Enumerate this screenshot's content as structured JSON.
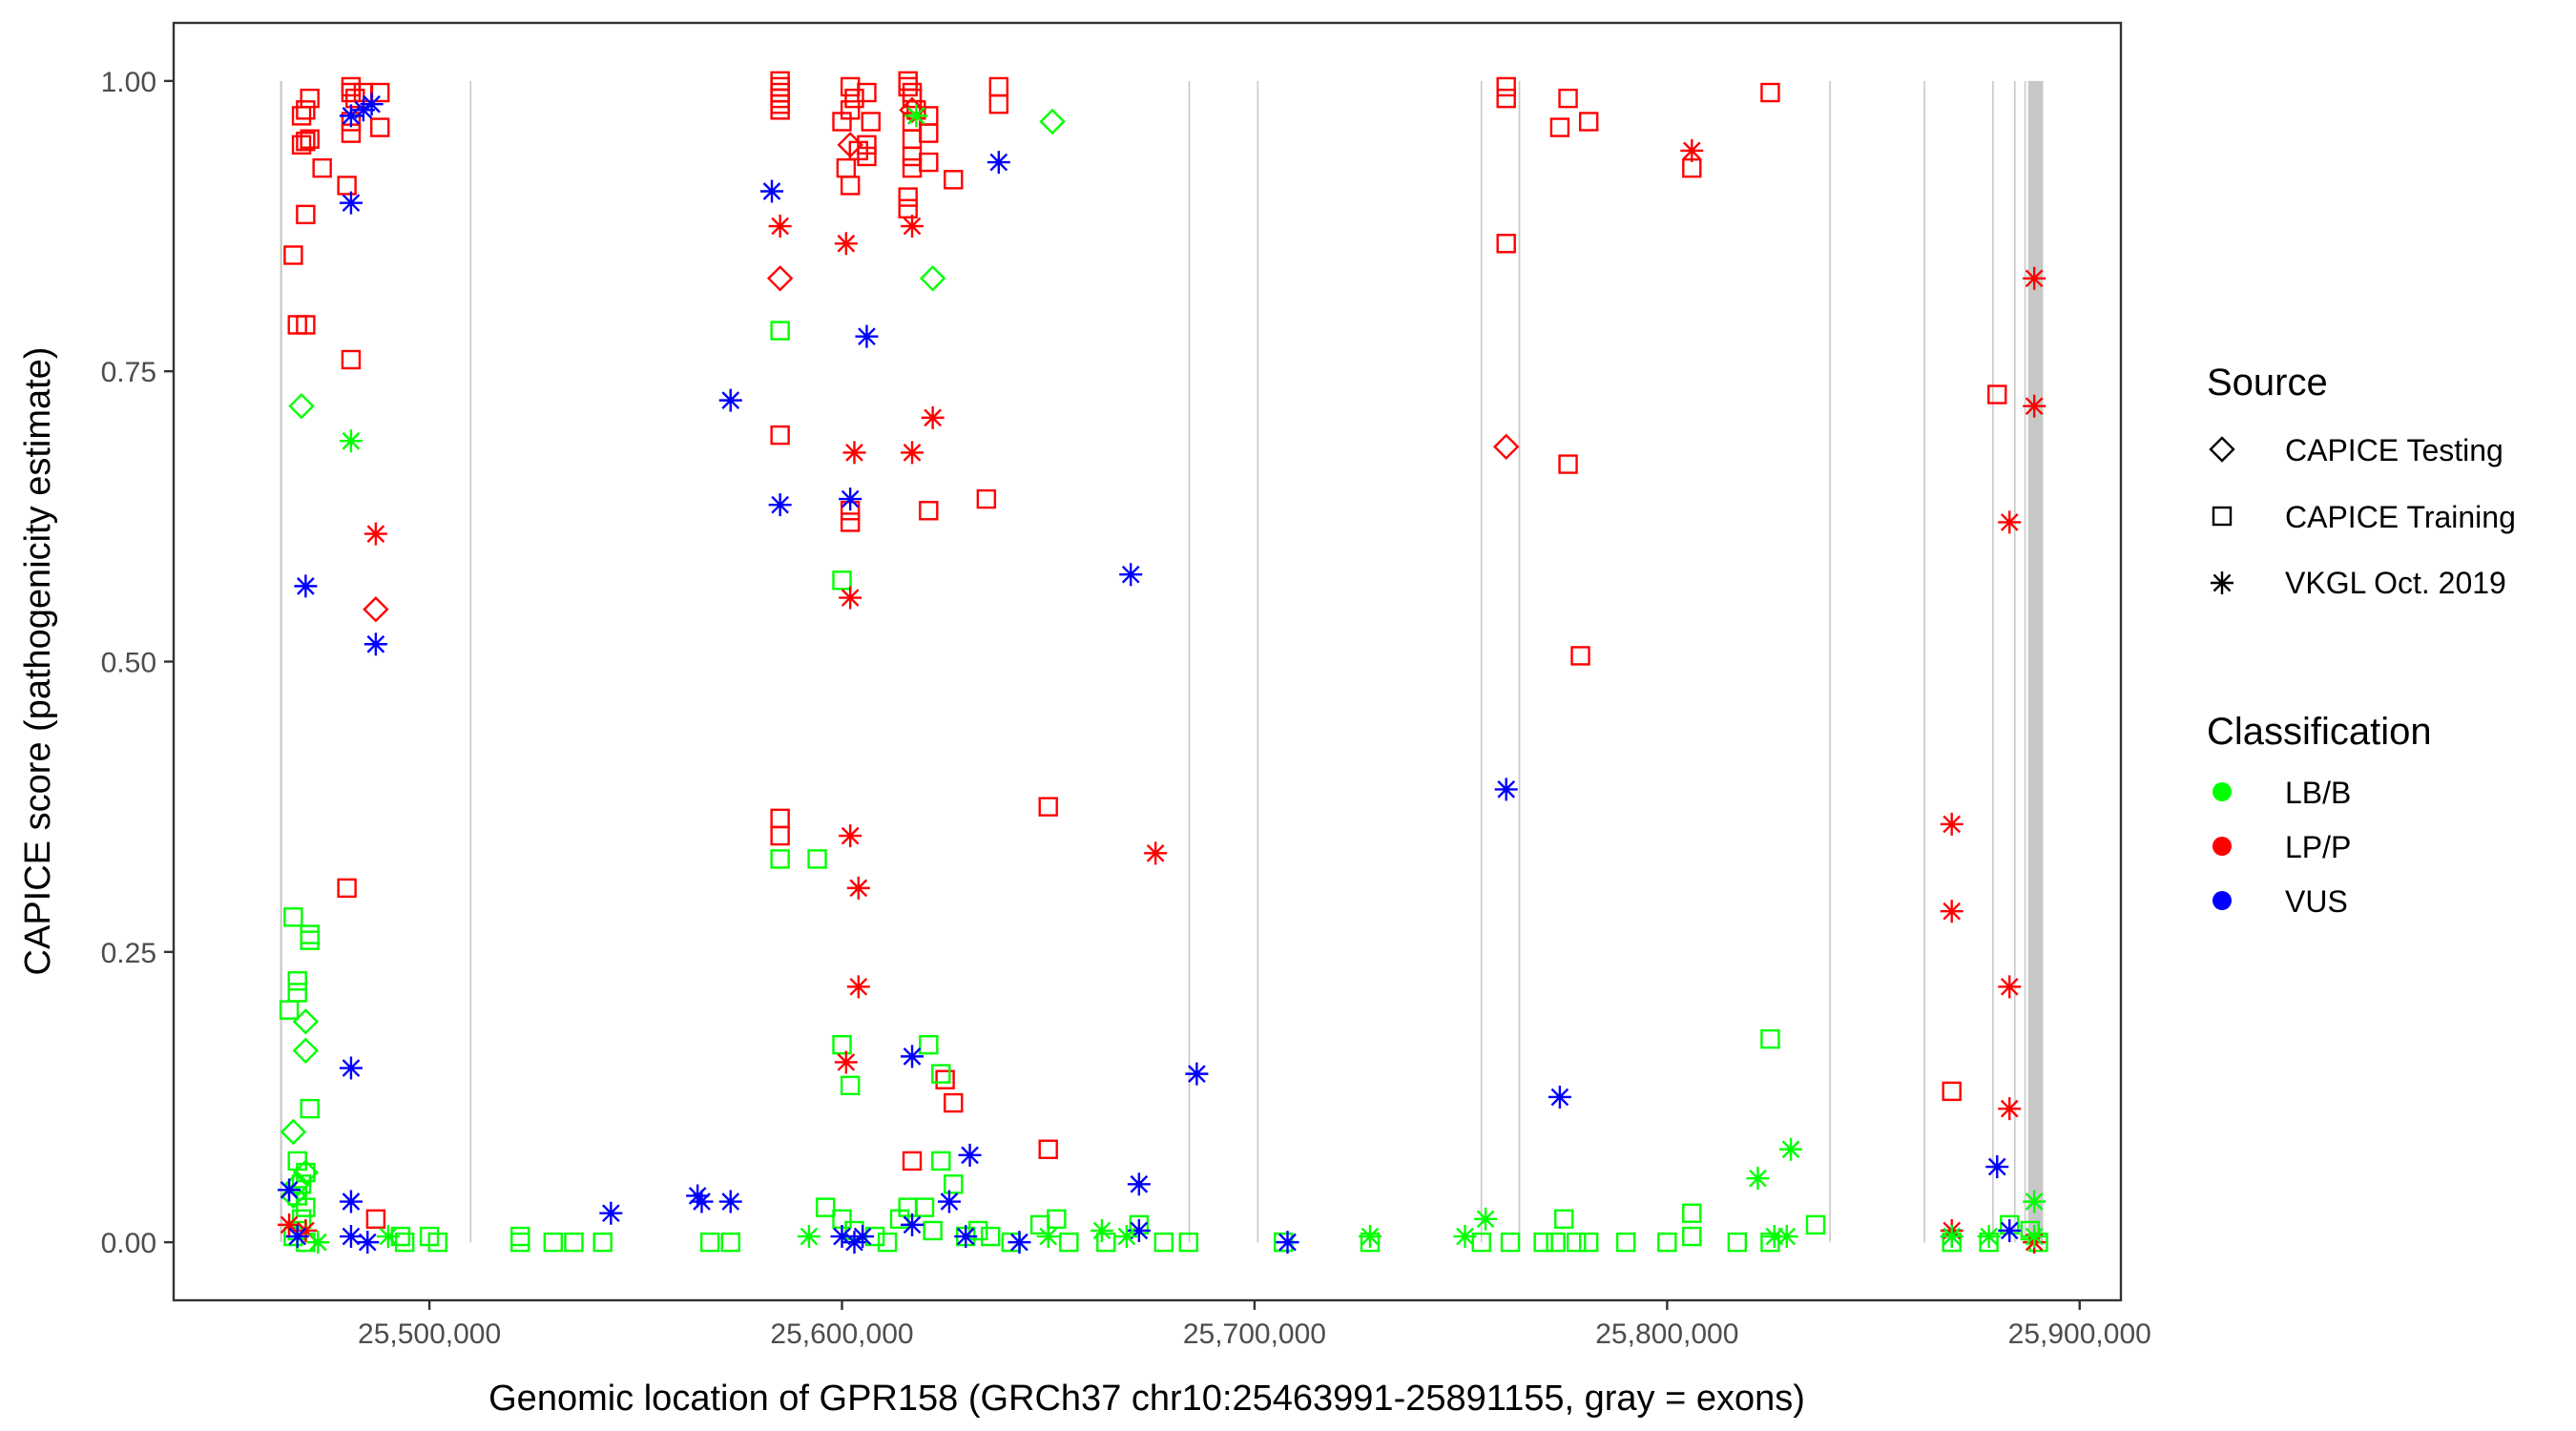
{
  "chart_data": {
    "type": "scatter",
    "title": "",
    "xlabel": "Genomic location of GPR158 (GRCh37 chr10:25463991-25891155, gray = exons)",
    "ylabel": "CAPICE score (pathogenicity estimate)",
    "xlim": [
      25438000,
      25910000
    ],
    "ylim": [
      -0.05,
      1.05
    ],
    "x_ticks": [
      25500000,
      25600000,
      25700000,
      25800000,
      25900000
    ],
    "x_tick_labels": [
      "25,500,000",
      "25,600,000",
      "25,700,000",
      "25,800,000",
      "25,900,000"
    ],
    "y_ticks": [
      0,
      0.25,
      0.5,
      0.75,
      1.0
    ],
    "y_tick_labels": [
      "0.00",
      "0.25",
      "0.50",
      "0.75",
      "1.00"
    ],
    "grid": false,
    "exons": [
      {
        "start": 25463800,
        "end": 25464300
      },
      {
        "start": 25509800,
        "end": 25510100
      },
      {
        "start": 25684000,
        "end": 25684300
      },
      {
        "start": 25700600,
        "end": 25700900
      },
      {
        "start": 25754800,
        "end": 25755100
      },
      {
        "start": 25764000,
        "end": 25764400
      },
      {
        "start": 25839300,
        "end": 25839600
      },
      {
        "start": 25862200,
        "end": 25862500
      },
      {
        "start": 25878800,
        "end": 25879100
      },
      {
        "start": 25884100,
        "end": 25884400
      },
      {
        "start": 25886600,
        "end": 25886900
      },
      {
        "start": 25887500,
        "end": 25891155
      }
    ],
    "legend": {
      "placement": "right",
      "source": {
        "title": "Source",
        "entries": [
          {
            "label": "CAPICE Testing",
            "shape": "diamond"
          },
          {
            "label": "CAPICE Training",
            "shape": "square"
          },
          {
            "label": "VKGL Oct. 2019",
            "shape": "asterisk"
          }
        ]
      },
      "classification": {
        "title": "Classification",
        "entries": [
          {
            "label": "LB/B",
            "color": "#00ff00"
          },
          {
            "label": "LP/P",
            "color": "#ff0000"
          },
          {
            "label": "VUS",
            "color": "#0000ff"
          }
        ]
      }
    },
    "series": [
      {
        "source": "CAPICE Training",
        "classification": "LP/P",
        "points": [
          [
            25467000,
            0.85
          ],
          [
            25468000,
            0.79
          ],
          [
            25470000,
            0.79
          ],
          [
            25469000,
            0.97
          ],
          [
            25470000,
            0.975
          ],
          [
            25471000,
            0.985
          ],
          [
            25469000,
            0.945
          ],
          [
            25470000,
            0.948
          ],
          [
            25471000,
            0.95
          ],
          [
            25474000,
            0.925
          ],
          [
            25470000,
            0.885
          ],
          [
            25481000,
            0.995
          ],
          [
            25481000,
            0.99
          ],
          [
            25482000,
            0.985
          ],
          [
            25484000,
            0.99
          ],
          [
            25488000,
            0.99
          ],
          [
            25481000,
            0.965
          ],
          [
            25481000,
            0.955
          ],
          [
            25488000,
            0.96
          ],
          [
            25480000,
            0.91
          ],
          [
            25481000,
            0.76
          ],
          [
            25480000,
            0.305
          ],
          [
            25487000,
            0.02
          ],
          [
            25585000,
            1.0
          ],
          [
            25585000,
            0.995
          ],
          [
            25585000,
            0.99
          ],
          [
            25585000,
            0.985
          ],
          [
            25585000,
            0.98
          ],
          [
            25585000,
            0.975
          ],
          [
            25602000,
            0.995
          ],
          [
            25603000,
            0.985
          ],
          [
            25606000,
            0.99
          ],
          [
            25600000,
            0.965
          ],
          [
            25602000,
            0.975
          ],
          [
            25607000,
            0.965
          ],
          [
            25601000,
            0.925
          ],
          [
            25606000,
            0.945
          ],
          [
            25606000,
            0.935
          ],
          [
            25602000,
            0.91
          ],
          [
            25604000,
            0.94
          ],
          [
            25616000,
            1.0
          ],
          [
            25616000,
            0.995
          ],
          [
            25617000,
            0.99
          ],
          [
            25617000,
            0.985
          ],
          [
            25618000,
            0.975
          ],
          [
            25617000,
            0.965
          ],
          [
            25617000,
            0.95
          ],
          [
            25621000,
            0.97
          ],
          [
            25617000,
            0.935
          ],
          [
            25617000,
            0.925
          ],
          [
            25621000,
            0.955
          ],
          [
            25621000,
            0.93
          ],
          [
            25627000,
            0.915
          ],
          [
            25616000,
            0.9
          ],
          [
            25616000,
            0.89
          ],
          [
            25638000,
            0.995
          ],
          [
            25638000,
            0.98
          ],
          [
            25585000,
            0.695
          ],
          [
            25602000,
            0.63
          ],
          [
            25602000,
            0.62
          ],
          [
            25621000,
            0.63
          ],
          [
            25635000,
            0.64
          ],
          [
            25585000,
            0.365
          ],
          [
            25585000,
            0.35
          ],
          [
            25650000,
            0.375
          ],
          [
            25617000,
            0.07
          ],
          [
            25625000,
            0.14
          ],
          [
            25627000,
            0.12
          ],
          [
            25650000,
            0.08
          ],
          [
            25761000,
            0.995
          ],
          [
            25761000,
            0.985
          ],
          [
            25761000,
            0.86
          ],
          [
            25776000,
            0.985
          ],
          [
            25774000,
            0.96
          ],
          [
            25781000,
            0.965
          ],
          [
            25776000,
            0.67
          ],
          [
            25779000,
            0.505
          ],
          [
            25806000,
            0.925
          ],
          [
            25825000,
            0.99
          ],
          [
            25880000,
            0.73
          ],
          [
            25869000,
            0.13
          ]
        ]
      },
      {
        "source": "CAPICE Training",
        "classification": "LB/B",
        "points": [
          [
            25467000,
            0.28
          ],
          [
            25471000,
            0.265
          ],
          [
            25471000,
            0.26
          ],
          [
            25468000,
            0.225
          ],
          [
            25468000,
            0.215
          ],
          [
            25466000,
            0.2
          ],
          [
            25471000,
            0.115
          ],
          [
            25468000,
            0.07
          ],
          [
            25470000,
            0.06
          ],
          [
            25469000,
            0.05
          ],
          [
            25468000,
            0.04
          ],
          [
            25470000,
            0.03
          ],
          [
            25469000,
            0.02
          ],
          [
            25468000,
            0.01
          ],
          [
            25467000,
            0.005
          ],
          [
            25470000,
            0.0
          ],
          [
            25493000,
            0.005
          ],
          [
            25494000,
            0.0
          ],
          [
            25500000,
            0.005
          ],
          [
            25502000,
            0.0
          ],
          [
            25522000,
            0.005
          ],
          [
            25522000,
            0.0
          ],
          [
            25530000,
            0.0
          ],
          [
            25535000,
            0.0
          ],
          [
            25542000,
            0.0
          ],
          [
            25568000,
            0.0
          ],
          [
            25573000,
            0.0
          ],
          [
            25585000,
            0.785
          ],
          [
            25600000,
            0.57
          ],
          [
            25585000,
            0.33
          ],
          [
            25594000,
            0.33
          ],
          [
            25600000,
            0.17
          ],
          [
            25602000,
            0.135
          ],
          [
            25621000,
            0.17
          ],
          [
            25624000,
            0.145
          ],
          [
            25624000,
            0.07
          ],
          [
            25627000,
            0.05
          ],
          [
            25596000,
            0.03
          ],
          [
            25600000,
            0.02
          ],
          [
            25603000,
            0.01
          ],
          [
            25608000,
            0.005
          ],
          [
            25611000,
            0.0
          ],
          [
            25614000,
            0.02
          ],
          [
            25616000,
            0.03
          ],
          [
            25620000,
            0.03
          ],
          [
            25622000,
            0.01
          ],
          [
            25630000,
            0.005
          ],
          [
            25633000,
            0.01
          ],
          [
            25636000,
            0.005
          ],
          [
            25641000,
            0.0
          ],
          [
            25648000,
            0.015
          ],
          [
            25652000,
            0.02
          ],
          [
            25655000,
            0.0
          ],
          [
            25664000,
            0.0
          ],
          [
            25672000,
            0.015
          ],
          [
            25678000,
            0.0
          ],
          [
            25684000,
            0.0
          ],
          [
            25707000,
            0.0
          ],
          [
            25728000,
            0.0
          ],
          [
            25755000,
            0.0
          ],
          [
            25762000,
            0.0
          ],
          [
            25770000,
            0.0
          ],
          [
            25773000,
            0.0
          ],
          [
            25775000,
            0.02
          ],
          [
            25778000,
            0.0
          ],
          [
            25781000,
            0.0
          ],
          [
            25790000,
            0.0
          ],
          [
            25800000,
            0.0
          ],
          [
            25806000,
            0.025
          ],
          [
            25806000,
            0.005
          ],
          [
            25817000,
            0.0
          ],
          [
            25825000,
            0.175
          ],
          [
            25825000,
            0.0
          ],
          [
            25836000,
            0.015
          ],
          [
            25869000,
            0.0
          ],
          [
            25878000,
            0.0
          ],
          [
            25883000,
            0.015
          ],
          [
            25888000,
            0.01
          ],
          [
            25890000,
            0.0
          ]
        ]
      },
      {
        "source": "CAPICE Testing",
        "classification": "LB/B",
        "points": [
          [
            25469000,
            0.72
          ],
          [
            25470000,
            0.19
          ],
          [
            25470000,
            0.165
          ],
          [
            25467000,
            0.095
          ],
          [
            25470000,
            0.06
          ],
          [
            25468000,
            0.05
          ],
          [
            25467000,
            0.04
          ],
          [
            25617000,
            0.975
          ],
          [
            25622000,
            0.83
          ],
          [
            25651000,
            0.965
          ]
        ]
      },
      {
        "source": "CAPICE Testing",
        "classification": "LP/P",
        "points": [
          [
            25487000,
            0.545
          ],
          [
            25585000,
            0.83
          ],
          [
            25602000,
            0.945
          ],
          [
            25617000,
            0.975
          ],
          [
            25761000,
            0.685
          ]
        ]
      },
      {
        "source": "VKGL Oct. 2019",
        "classification": "LP/P",
        "points": [
          [
            25487000,
            0.61
          ],
          [
            25466000,
            0.015
          ],
          [
            25470000,
            0.01
          ],
          [
            25585000,
            0.875
          ],
          [
            25601000,
            0.86
          ],
          [
            25617000,
            0.875
          ],
          [
            25622000,
            0.71
          ],
          [
            25603000,
            0.68
          ],
          [
            25617000,
            0.68
          ],
          [
            25602000,
            0.555
          ],
          [
            25602000,
            0.35
          ],
          [
            25604000,
            0.305
          ],
          [
            25604000,
            0.22
          ],
          [
            25601000,
            0.155
          ],
          [
            25676000,
            0.335
          ],
          [
            25806000,
            0.94
          ],
          [
            25869000,
            0.36
          ],
          [
            25869000,
            0.285
          ],
          [
            25869000,
            0.01
          ],
          [
            25883000,
            0.62
          ],
          [
            25883000,
            0.22
          ],
          [
            25883000,
            0.115
          ],
          [
            25889000,
            0.83
          ],
          [
            25889000,
            0.72
          ],
          [
            25889000,
            0.0
          ]
        ]
      },
      {
        "source": "VKGL Oct. 2019",
        "classification": "VUS",
        "points": [
          [
            25481000,
            0.97
          ],
          [
            25484000,
            0.975
          ],
          [
            25486000,
            0.98
          ],
          [
            25481000,
            0.895
          ],
          [
            25470000,
            0.565
          ],
          [
            25487000,
            0.515
          ],
          [
            25481000,
            0.15
          ],
          [
            25481000,
            0.035
          ],
          [
            25466000,
            0.045
          ],
          [
            25468000,
            0.005
          ],
          [
            25481000,
            0.005
          ],
          [
            25485000,
            0.0
          ],
          [
            25544000,
            0.025
          ],
          [
            25565000,
            0.04
          ],
          [
            25566000,
            0.035
          ],
          [
            25573000,
            0.035
          ],
          [
            25583000,
            0.905
          ],
          [
            25573000,
            0.725
          ],
          [
            25585000,
            0.635
          ],
          [
            25602000,
            0.64
          ],
          [
            25606000,
            0.78
          ],
          [
            25638000,
            0.93
          ],
          [
            25617000,
            0.16
          ],
          [
            25631000,
            0.075
          ],
          [
            25626000,
            0.035
          ],
          [
            25617000,
            0.015
          ],
          [
            25600000,
            0.005
          ],
          [
            25603000,
            0.0
          ],
          [
            25605000,
            0.005
          ],
          [
            25630000,
            0.005
          ],
          [
            25643000,
            0.0
          ],
          [
            25670000,
            0.575
          ],
          [
            25686000,
            0.145
          ],
          [
            25672000,
            0.05
          ],
          [
            25672000,
            0.01
          ],
          [
            25708000,
            0.0
          ],
          [
            25761000,
            0.39
          ],
          [
            25774000,
            0.125
          ],
          [
            25880000,
            0.065
          ],
          [
            25883000,
            0.01
          ],
          [
            25869000,
            0.005
          ]
        ]
      },
      {
        "source": "VKGL Oct. 2019",
        "classification": "LB/B",
        "points": [
          [
            25481000,
            0.69
          ],
          [
            25473000,
            0.0
          ],
          [
            25490000,
            0.005
          ],
          [
            25592000,
            0.005
          ],
          [
            25618000,
            0.97
          ],
          [
            25650000,
            0.005
          ],
          [
            25663000,
            0.01
          ],
          [
            25669000,
            0.005
          ],
          [
            25728000,
            0.005
          ],
          [
            25751000,
            0.005
          ],
          [
            25756000,
            0.02
          ],
          [
            25822000,
            0.055
          ],
          [
            25830000,
            0.08
          ],
          [
            25826000,
            0.005
          ],
          [
            25829000,
            0.005
          ],
          [
            25869000,
            0.005
          ],
          [
            25878000,
            0.005
          ],
          [
            25889000,
            0.035
          ],
          [
            25889000,
            0.005
          ]
        ]
      }
    ]
  }
}
